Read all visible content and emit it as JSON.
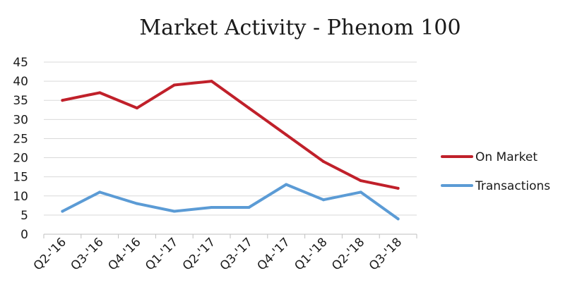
{
  "chart_data": {
    "type": "line",
    "title": "Market Activity - Phenom 100",
    "xlabel": "",
    "ylabel": "",
    "categories": [
      "Q2-'16",
      "Q3-'16",
      "Q4-'16",
      "Q1-'17",
      "Q2-'17",
      "Q3-'17",
      "Q4-'17",
      "Q1-'18",
      "Q2-'18",
      "Q3-'18"
    ],
    "ylim": [
      0,
      45
    ],
    "yticks": [
      0,
      5,
      10,
      15,
      20,
      25,
      30,
      35,
      40,
      45
    ],
    "grid": true,
    "legend_position": "right",
    "series": [
      {
        "name": "On Market",
        "color": "#c0202a",
        "values": [
          35,
          37,
          33,
          39,
          40,
          33,
          26,
          19,
          14,
          12
        ]
      },
      {
        "name": "Transactions",
        "color": "#5b9bd5",
        "values": [
          6,
          11,
          8,
          6,
          7,
          7,
          13,
          9,
          11,
          4
        ]
      }
    ]
  }
}
